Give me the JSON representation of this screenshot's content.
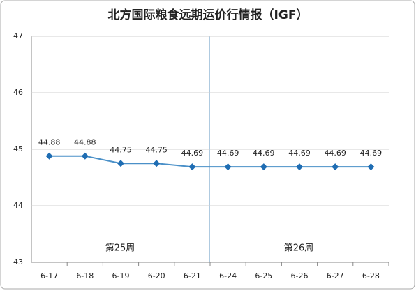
{
  "chart_data": {
    "type": "line",
    "title": "北方国际粮食远期运价行情报（IGF）",
    "categories": [
      "6-17",
      "6-18",
      "6-19",
      "6-20",
      "6-21",
      "6-24",
      "6-25",
      "6-26",
      "6-27",
      "6-28"
    ],
    "series": [
      {
        "name": "IGF",
        "color": "#4a90c8",
        "marker_color": "#1f6db3",
        "values": [
          44.88,
          44.88,
          44.75,
          44.75,
          44.69,
          44.69,
          44.69,
          44.69,
          44.69,
          44.69
        ]
      }
    ],
    "ylim": [
      43,
      47
    ],
    "yticks": [
      43,
      44,
      45,
      46,
      47
    ],
    "grid": true,
    "annotations": [
      "第25周",
      "第26周"
    ]
  }
}
